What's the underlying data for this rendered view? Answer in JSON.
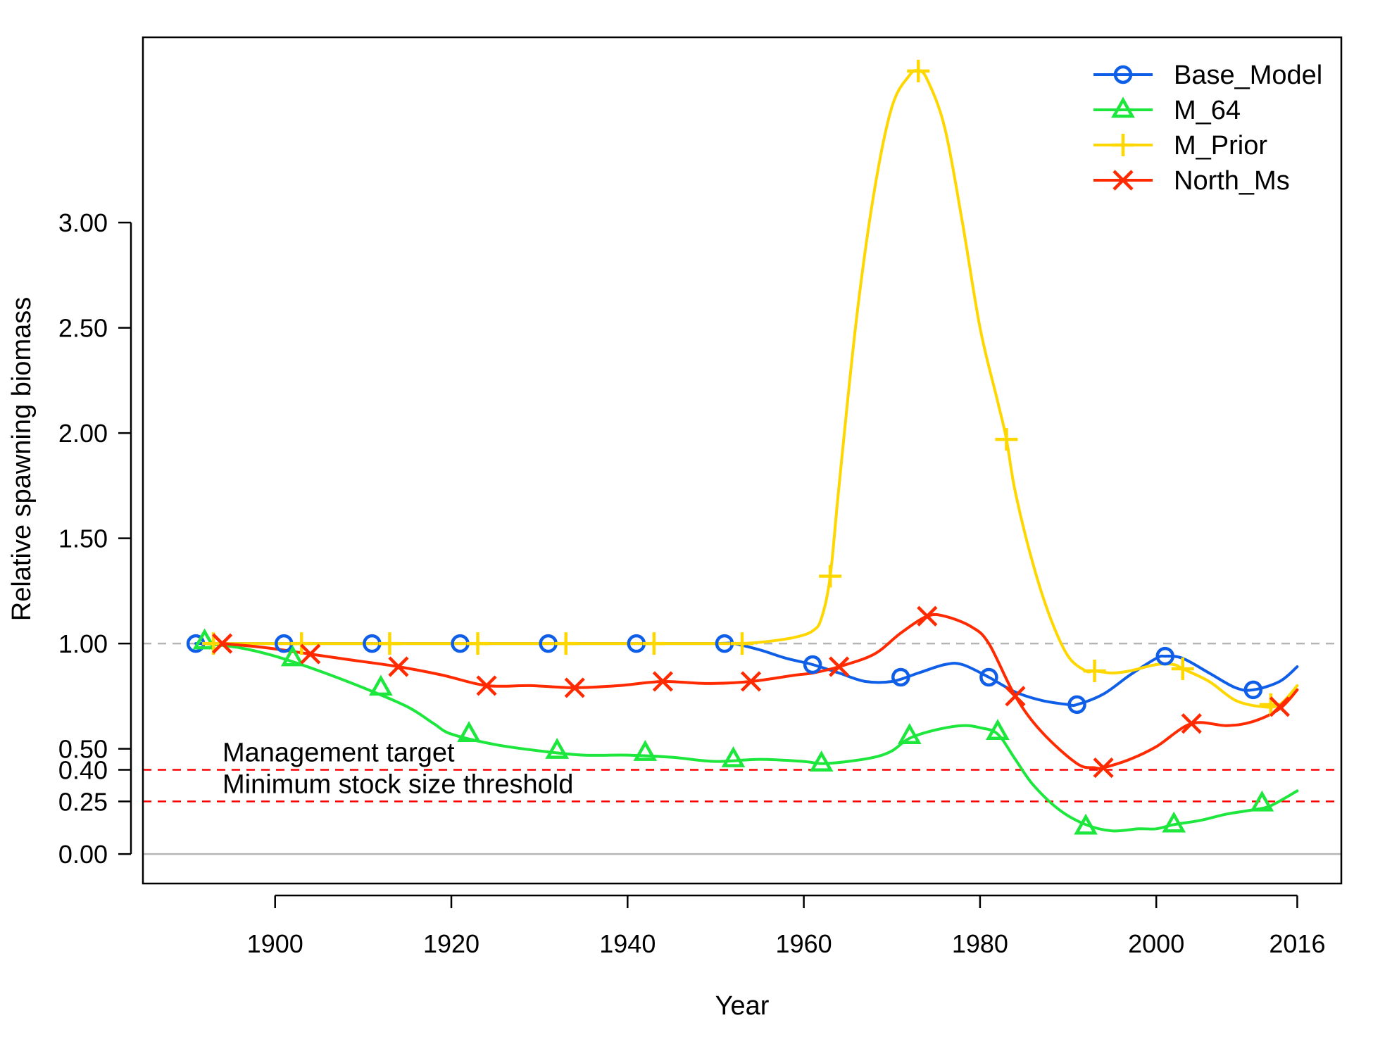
{
  "chart_data": {
    "type": "line",
    "title": "",
    "xlabel": "Year",
    "ylabel": "Relative spawning biomass",
    "xlim": [
      1885,
      2021
    ],
    "ylim": [
      -0.14,
      3.88
    ],
    "x_ticks": [
      {
        "value": 1900,
        "label": "1900"
      },
      {
        "value": 1920,
        "label": "1920"
      },
      {
        "value": 1940,
        "label": "1940"
      },
      {
        "value": 1960,
        "label": "1960"
      },
      {
        "value": 1980,
        "label": "1980"
      },
      {
        "value": 2000,
        "label": "2000"
      },
      {
        "value": 2016,
        "label": "2016"
      }
    ],
    "y_ticks": [
      {
        "value": 0.0,
        "label": "0.00"
      },
      {
        "value": 0.25,
        "label": "0.25"
      },
      {
        "value": 0.4,
        "label": "0.40"
      },
      {
        "value": 0.5,
        "label": "0.50"
      },
      {
        "value": 1.0,
        "label": "1.00"
      },
      {
        "value": 1.5,
        "label": "1.50"
      },
      {
        "value": 2.0,
        "label": "2.00"
      },
      {
        "value": 2.5,
        "label": "2.50"
      },
      {
        "value": 3.0,
        "label": "3.00"
      }
    ],
    "reference_lines": [
      {
        "value": 1.0,
        "label": "",
        "color": "#b5b5b5",
        "style": "dashed"
      },
      {
        "value": 0.4,
        "label": "Management target",
        "color": "#ff0000",
        "style": "dashed"
      },
      {
        "value": 0.25,
        "label": "Minimum stock size threshold",
        "color": "#ff0000",
        "style": "dashed"
      },
      {
        "value": 0.0,
        "label": "",
        "color": "#b5b5b5",
        "style": "solid"
      }
    ],
    "legend_position": "top-right",
    "series": [
      {
        "name": "Base_Model",
        "color": "#0f5ee8",
        "marker": "circle",
        "x": [
          1891,
          1900,
          1910,
          1920,
          1930,
          1940,
          1950,
          1952,
          1955,
          1958,
          1961,
          1964,
          1967,
          1970,
          1973,
          1976,
          1978,
          1981,
          1984,
          1987,
          1990,
          1991,
          1994,
          1997,
          2000,
          2001,
          2003,
          2006,
          2009,
          2011,
          2014,
          2016
        ],
        "y": [
          1.0,
          1.0,
          1.0,
          1.0,
          1.0,
          1.0,
          1.0,
          1.0,
          0.97,
          0.93,
          0.9,
          0.86,
          0.82,
          0.82,
          0.86,
          0.9,
          0.9,
          0.84,
          0.77,
          0.73,
          0.71,
          0.71,
          0.76,
          0.85,
          0.93,
          0.94,
          0.93,
          0.86,
          0.79,
          0.78,
          0.82,
          0.89
        ],
        "marker_x": [
          1891,
          1901,
          1911,
          1921,
          1931,
          1941,
          1951,
          1961,
          1971,
          1981,
          1991,
          2001,
          2011
        ],
        "marker_y": [
          1.0,
          1.0,
          1.0,
          1.0,
          1.0,
          1.0,
          1.0,
          0.9,
          0.84,
          0.84,
          0.71,
          0.94,
          0.78
        ]
      },
      {
        "name": "M_64",
        "color": "#1de63c",
        "marker": "triangle",
        "x": [
          1892,
          1896,
          1900,
          1905,
          1910,
          1915,
          1918,
          1920,
          1925,
          1930,
          1935,
          1940,
          1945,
          1950,
          1955,
          1960,
          1962,
          1965,
          1968,
          1970,
          1972,
          1975,
          1978,
          1980,
          1982,
          1984,
          1986,
          1989,
          1992,
          1995,
          1998,
          2000,
          2002,
          2005,
          2008,
          2011,
          2013,
          2016
        ],
        "y": [
          1.0,
          0.98,
          0.94,
          0.87,
          0.79,
          0.7,
          0.62,
          0.57,
          0.52,
          0.49,
          0.47,
          0.47,
          0.46,
          0.44,
          0.45,
          0.44,
          0.43,
          0.44,
          0.46,
          0.49,
          0.55,
          0.59,
          0.61,
          0.6,
          0.57,
          0.45,
          0.33,
          0.21,
          0.14,
          0.11,
          0.12,
          0.12,
          0.14,
          0.16,
          0.19,
          0.21,
          0.23,
          0.3
        ],
        "marker_x": [
          1892,
          1902,
          1912,
          1922,
          1932,
          1942,
          1952,
          1962,
          1972,
          1982,
          1992,
          2002,
          2012
        ],
        "marker_y": [
          1.01,
          0.93,
          0.79,
          0.57,
          0.49,
          0.48,
          0.45,
          0.43,
          0.56,
          0.58,
          0.13,
          0.14,
          0.24
        ]
      },
      {
        "name": "M_Prior",
        "color": "#ffd700",
        "marker": "plus",
        "x": [
          1893,
          1900,
          1910,
          1920,
          1930,
          1940,
          1950,
          1953,
          1956,
          1959,
          1961,
          1962,
          1963,
          1964,
          1966,
          1968,
          1970,
          1972,
          1973,
          1974,
          1976,
          1978,
          1980,
          1982,
          1983,
          1984,
          1986,
          1988,
          1990,
          1992,
          1993,
          1995,
          1997,
          2000,
          2002,
          2003,
          2006,
          2009,
          2012,
          2014,
          2016
        ],
        "y": [
          1.0,
          1.0,
          1.0,
          1.0,
          1.0,
          1.0,
          1.0,
          1.0,
          1.01,
          1.03,
          1.06,
          1.12,
          1.32,
          1.75,
          2.55,
          3.15,
          3.55,
          3.7,
          3.72,
          3.68,
          3.45,
          3.0,
          2.5,
          2.15,
          1.97,
          1.72,
          1.38,
          1.12,
          0.94,
          0.87,
          0.87,
          0.86,
          0.87,
          0.9,
          0.9,
          0.88,
          0.82,
          0.73,
          0.7,
          0.71,
          0.8
        ],
        "marker_x": [
          1893,
          1903,
          1913,
          1923,
          1933,
          1943,
          1953,
          1963,
          1973,
          1983,
          1993,
          2003,
          2013
        ],
        "marker_y": [
          1.0,
          1.0,
          1.0,
          1.0,
          1.0,
          1.0,
          1.0,
          1.32,
          3.72,
          1.97,
          0.87,
          0.88,
          0.71
        ]
      },
      {
        "name": "North_Ms",
        "color": "#ff2a00",
        "marker": "cross",
        "x": [
          1894,
          1899,
          1904,
          1909,
          1914,
          1919,
          1924,
          1929,
          1934,
          1939,
          1944,
          1949,
          1954,
          1959,
          1961,
          1964,
          1968,
          1971,
          1974,
          1976,
          1979,
          1981,
          1984,
          1987,
          1991,
          1993,
          1994,
          1997,
          2000,
          2004,
          2008,
          2011,
          2014,
          2016
        ],
        "y": [
          1.0,
          0.98,
          0.95,
          0.92,
          0.89,
          0.85,
          0.8,
          0.8,
          0.79,
          0.8,
          0.82,
          0.81,
          0.82,
          0.85,
          0.86,
          0.89,
          0.95,
          1.05,
          1.13,
          1.13,
          1.08,
          1.0,
          0.75,
          0.58,
          0.43,
          0.41,
          0.41,
          0.45,
          0.51,
          0.62,
          0.61,
          0.63,
          0.69,
          0.78
        ],
        "marker_x": [
          1894,
          1904,
          1914,
          1924,
          1934,
          1944,
          1954,
          1964,
          1974,
          1984,
          1994,
          2004,
          2014
        ],
        "marker_y": [
          1.0,
          0.95,
          0.89,
          0.8,
          0.79,
          0.82,
          0.82,
          0.89,
          1.13,
          0.75,
          0.41,
          0.62,
          0.7
        ]
      }
    ]
  }
}
